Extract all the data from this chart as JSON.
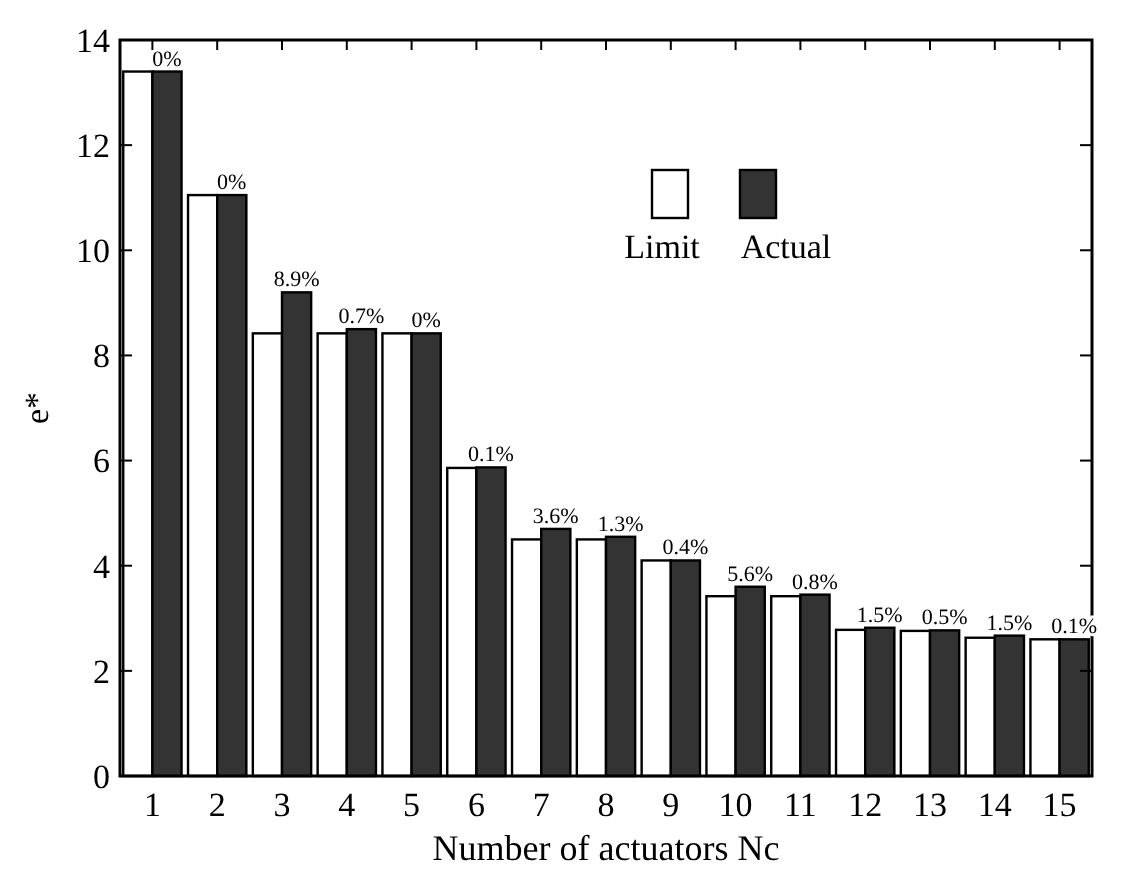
{
  "chart_data": {
    "type": "bar",
    "xlabel": "Number of actuators Nc",
    "ylabel": "e*",
    "categories": [
      "1",
      "2",
      "3",
      "4",
      "5",
      "6",
      "7",
      "8",
      "9",
      "10",
      "11",
      "12",
      "13",
      "14",
      "15"
    ],
    "series": [
      {
        "name": "Limit",
        "color": "#ffffff",
        "values": [
          13.4,
          11.05,
          8.42,
          8.42,
          8.42,
          5.86,
          4.5,
          4.5,
          4.1,
          3.42,
          3.42,
          2.78,
          2.76,
          2.63,
          2.6
        ]
      },
      {
        "name": "Actual",
        "color": "#333333",
        "values": [
          13.4,
          11.05,
          9.2,
          8.5,
          8.42,
          5.87,
          4.7,
          4.55,
          4.1,
          3.6,
          3.45,
          2.82,
          2.77,
          2.67,
          2.6
        ]
      }
    ],
    "annotations": [
      {
        "text": "0%",
        "x": "1",
        "y": 13.4
      },
      {
        "text": "0%",
        "x": "2",
        "y": 11.05
      },
      {
        "text": "8.9%",
        "x": "3",
        "y": 9.2
      },
      {
        "text": "0.7%",
        "x": "4",
        "y": 8.5
      },
      {
        "text": "0%",
        "x": "5",
        "y": 8.42
      },
      {
        "text": "0.1%",
        "x": "6",
        "y": 5.87
      },
      {
        "text": "3.6%",
        "x": "7",
        "y": 4.7
      },
      {
        "text": "1.3%",
        "x": "8",
        "y": 4.55
      },
      {
        "text": "0.4%",
        "x": "9",
        "y": 4.1
      },
      {
        "text": "5.6%",
        "x": "10",
        "y": 3.6
      },
      {
        "text": "0.8%",
        "x": "11",
        "y": 3.45
      },
      {
        "text": "1.5%",
        "x": "12",
        "y": 2.82
      },
      {
        "text": "0.5%",
        "x": "13",
        "y": 2.77
      },
      {
        "text": "1.5%",
        "x": "14",
        "y": 2.67
      },
      {
        "text": "0.1%",
        "x": "15",
        "y": 2.6
      }
    ],
    "ylim": [
      0,
      14
    ],
    "yticks": [
      0,
      2,
      4,
      6,
      8,
      10,
      12,
      14
    ],
    "grid": false,
    "legend": "top right"
  }
}
